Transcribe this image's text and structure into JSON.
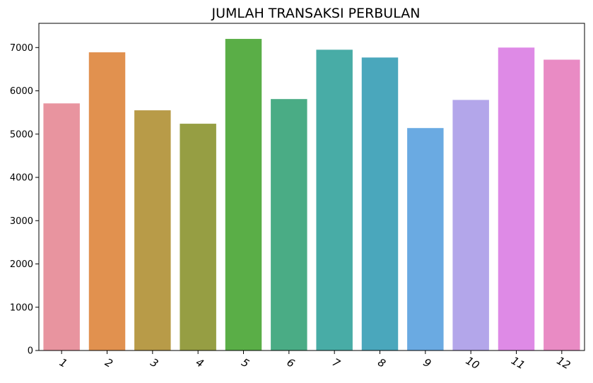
{
  "chart_data": {
    "type": "bar",
    "title": "JUMLAH TRANSAKSI PERBULAN",
    "xlabel": "",
    "ylabel": "",
    "categories": [
      "1",
      "2",
      "3",
      "4",
      "5",
      "6",
      "7",
      "8",
      "9",
      "10",
      "11",
      "12"
    ],
    "values": [
      5710,
      6890,
      5550,
      5240,
      7200,
      5810,
      6950,
      6770,
      5140,
      5790,
      7000,
      6720
    ],
    "colors": [
      "#e8949f",
      "#e1914f",
      "#b89b48",
      "#969e43",
      "#5aae47",
      "#4aac85",
      "#48aca6",
      "#4aa7bc",
      "#6aaae2",
      "#b3a6ea",
      "#de8ae6",
      "#e98bc4"
    ],
    "y_ticks": [
      "0",
      "1000",
      "2000",
      "3000",
      "4000",
      "5000",
      "6000",
      "7000"
    ],
    "ylim": [
      0,
      7560
    ],
    "grid": false,
    "legend": "none"
  }
}
